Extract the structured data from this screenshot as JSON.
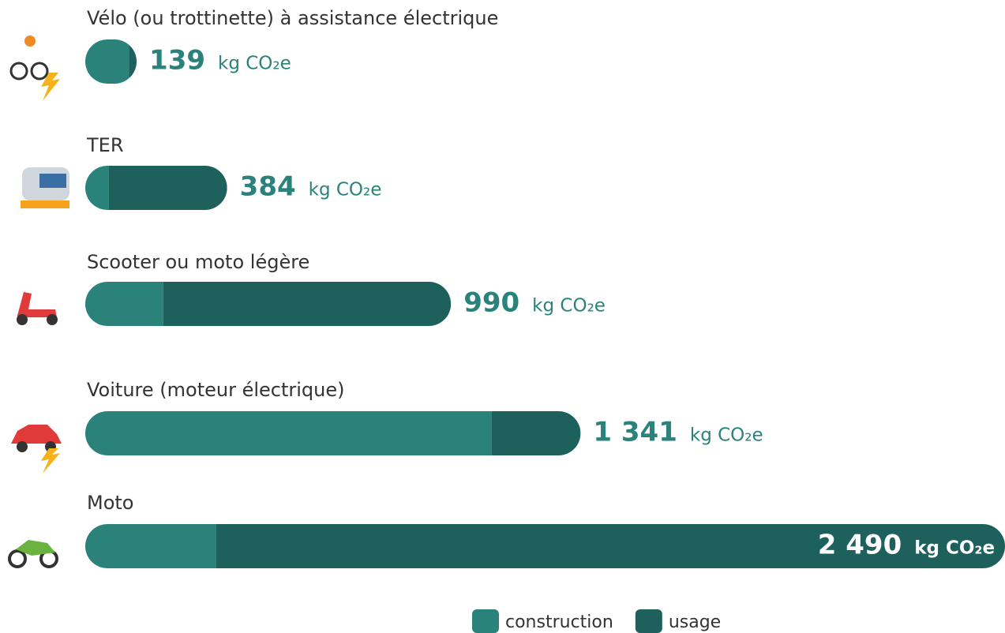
{
  "chart_data": {
    "type": "stacked-barh",
    "categories": [
      "Vélo (ou trottinette) à assistance électrique",
      "TER",
      "Scooter ou moto légère",
      "Voiture (moteur électrique)",
      "Moto"
    ],
    "series": [
      {
        "name": "construction",
        "color": "#2a827b",
        "values": [
          118,
          64,
          211,
          1100,
          354
        ]
      },
      {
        "name": "usage",
        "color": "#1e605c",
        "values": [
          21,
          320,
          779,
          241,
          2136
        ]
      }
    ],
    "totals": {
      "values": [
        139,
        384,
        990,
        1341,
        2490
      ],
      "value_labels": [
        "139",
        "384",
        "990",
        "1 341",
        "2 490"
      ]
    },
    "unit": "kg CO₂e",
    "xlim": [
      0,
      2490
    ]
  }
}
